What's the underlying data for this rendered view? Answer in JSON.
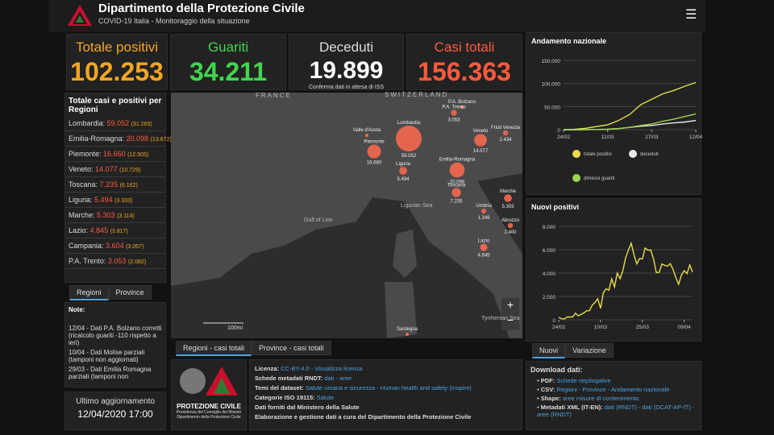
{
  "header": {
    "title": "Dipartimento della Protezione Civile",
    "subtitle": "COVID-19 Italia - Monitoraggio della situazione"
  },
  "stats": [
    {
      "label": "Totale positivi",
      "value": "102.253"
    },
    {
      "label": "Guariti",
      "value": "34.211"
    },
    {
      "label": "Deceduti",
      "value": "19.899",
      "note": "Conferma dati in attesa di ISS"
    },
    {
      "label": "Casi totali",
      "value": "156.363"
    }
  ],
  "regions": {
    "title": "Totale casi e positivi per Regioni",
    "rows": [
      {
        "name": "Lombardia:",
        "total": "59.052",
        "positive": "(31.265)"
      },
      {
        "name": "Emilia-Romagna:",
        "total": "20.098",
        "positive": "(13.672)"
      },
      {
        "name": "Piemonte:",
        "total": "16.660",
        "positive": "(12.505)"
      },
      {
        "name": "Veneto:",
        "total": "14.077",
        "positive": "(10.729)"
      },
      {
        "name": "Toscana:",
        "total": "7.235",
        "positive": "(6.162)"
      },
      {
        "name": "Liguria:",
        "total": "5.494",
        "positive": "(3.333)"
      },
      {
        "name": "Marche:",
        "total": "5.303",
        "positive": "(3.114)"
      },
      {
        "name": "Lazio:",
        "total": "4.845",
        "positive": "(3.817)"
      },
      {
        "name": "Campania:",
        "total": "3.604",
        "positive": "(3.057)"
      },
      {
        "name": "P.A. Trento:",
        "total": "3.053",
        "positive": "(2.082)"
      }
    ],
    "tabs": [
      "Regioni",
      "Province"
    ]
  },
  "notes": {
    "title": "Note:",
    "items": [
      "12/04 - Dati P.A. Bolzano corretti (ricalcolo guariti -110 rispetto a ieri)",
      "10/04 - Dati Molise parziali (tamponi non aggiornati)",
      "29/03 - Dati Emilia Romagna parziali (tamponi non"
    ]
  },
  "update": {
    "label": "Ultimo aggiornamento",
    "value": "12/04/2020 17:00"
  },
  "map": {
    "places": [
      "FRANCE",
      "SWITZERLAND",
      "Gulf of Lion",
      "Ligurian Sea",
      "Tyrrhenian Sea"
    ],
    "scale": "100mi",
    "labels": [
      "Valle d'Aosta",
      "P.A. Bolzano",
      "Sardegna"
    ],
    "bubbles": [
      {
        "name": "Lombardia",
        "value": 59052,
        "value_label": "59.052"
      },
      {
        "name": "Piemonte",
        "value": 16660,
        "value_label": "16.660"
      },
      {
        "name": "Liguria",
        "value": 5494,
        "value_label": "5.494"
      },
      {
        "name": "Emilia-Romagna",
        "value": 20098,
        "value_label": "20.098"
      },
      {
        "name": "Veneto",
        "value": 14077,
        "value_label": "14.077"
      },
      {
        "name": "P.A. Trento",
        "value": 3053,
        "value_label": "3.053"
      },
      {
        "name": "Friuli Venezia",
        "value": 2434,
        "value_label": "2.434"
      },
      {
        "name": "Toscana",
        "value": 7235,
        "value_label": "7.235"
      },
      {
        "name": "Marche",
        "value": 5303,
        "value_label": "5.303"
      },
      {
        "name": "Umbria",
        "value": 1349,
        "value_label": "1.349"
      },
      {
        "name": "Abruzzo",
        "value": 2400,
        "value_label": "2.400"
      },
      {
        "name": "Lazio",
        "value": 4845,
        "value_label": "4.845"
      }
    ],
    "tabs": [
      "Regioni - casi totali",
      "Province - casi totali"
    ]
  },
  "logo": {
    "name": "PROTEZIONE CIVILE",
    "line1": "Presidenza del Consiglio dei Ministri",
    "line2": "Dipartimento della Protezione Civile"
  },
  "info": [
    {
      "label": "Licenza:",
      "value": "CC-BY-4.0 - Visualizza licenza"
    },
    {
      "label": "Schede metadati RNDT:",
      "value": "dati - aree"
    },
    {
      "label": "Temi del dataset:",
      "value": "Salute umana e sicurezza - Human health and safety (Inspire)"
    },
    {
      "label": "Categorie ISO 19115:",
      "value": "Salute"
    },
    {
      "label": "Dati forniti dal Ministero della Salute"
    },
    {
      "label": "Elaborazione e gestione dati a cura del Dipartimento della Protezione Civile"
    }
  ],
  "download": {
    "title": "Download dati:",
    "items": [
      {
        "label": "PDF:",
        "value": "Schede riepilogative"
      },
      {
        "label": "CSV:",
        "value": "Regioni - Province - Andamento nazionale"
      },
      {
        "label": "Shape:",
        "value": "aree misure di contenimento"
      },
      {
        "label": "Metadati XML (IT-EN):",
        "value": "dati (RNDT) - dati (DCAT-AP-IT) - aree (RNDT)"
      }
    ]
  },
  "trend_chart": {
    "type": "line",
    "title": "Andamento nazionale",
    "x": [
      0,
      4,
      8,
      12,
      16,
      20,
      24,
      28,
      32,
      36,
      40,
      44,
      48
    ],
    "xlim": [
      0,
      48
    ],
    "xticks": [
      {
        "value": 0,
        "label": "24/02"
      },
      {
        "value": 16,
        "label": "11/03"
      },
      {
        "value": 32,
        "label": "27/03"
      },
      {
        "value": 48,
        "label": "12/04"
      }
    ],
    "ylim": [
      0,
      150000
    ],
    "yticks": [
      0,
      {
        "value": 50000,
        "label": "50.000"
      },
      {
        "value": 100000,
        "label": "100.000"
      },
      {
        "value": 150000,
        "label": "150.000"
      }
    ],
    "grid": true,
    "series": [
      {
        "name": "totale positivi",
        "color": "#e8dc4a",
        "values": [
          0,
          1000,
          3000,
          7000,
          10590,
          20000,
          33000,
          54000,
          66000,
          77600,
          85000,
          94000,
          102253
        ]
      },
      {
        "name": "deceduti",
        "color": "#e8e8e8",
        "values": [
          0,
          50,
          200,
          600,
          830,
          2500,
          4800,
          7500,
          9100,
          12400,
          14700,
          16500,
          19899
        ]
      },
      {
        "name": "dimessi guariti",
        "color": "#9ad650",
        "values": [
          0,
          40,
          150,
          600,
          1000,
          2300,
          5100,
          9000,
          12400,
          18300,
          22800,
          28500,
          34211
        ]
      }
    ]
  },
  "new_chart": {
    "type": "line",
    "title": "Nuovi positivi",
    "xlim": [
      0,
      48
    ],
    "xticks": [
      {
        "value": 0,
        "label": "24/02"
      },
      {
        "value": 15,
        "label": "10/03"
      },
      {
        "value": 30,
        "label": "25/03"
      },
      {
        "value": 45,
        "label": "09/04"
      }
    ],
    "ylim": [
      0,
      8000
    ],
    "yticks": [
      0,
      {
        "value": 2000,
        "label": "2.000"
      },
      {
        "value": 4000,
        "label": "4.000"
      },
      {
        "value": 6000,
        "label": "6.000"
      },
      {
        "value": 8000,
        "label": "8.000"
      }
    ],
    "grid": true,
    "series": [
      {
        "name": "Nuovi",
        "color": "#e8dc4a",
        "values": [
          221,
          93,
          78,
          250,
          238,
          240,
          566,
          342,
          466,
          587,
          769,
          778,
          1247,
          1492,
          1797,
          977,
          2313,
          2651,
          2547,
          3497,
          2823,
          4000,
          3526,
          4207,
          5322,
          5986,
          6557,
          5560,
          4789,
          5249,
          5210,
          6153,
          5959,
          5974,
          5217,
          4050,
          4053,
          4782,
          4668,
          4585,
          4805,
          4316,
          3599,
          3039,
          3836,
          4204,
          3951,
          4694,
          4092
        ]
      }
    ],
    "tabs": [
      "Nuovi",
      "Variazione"
    ]
  }
}
